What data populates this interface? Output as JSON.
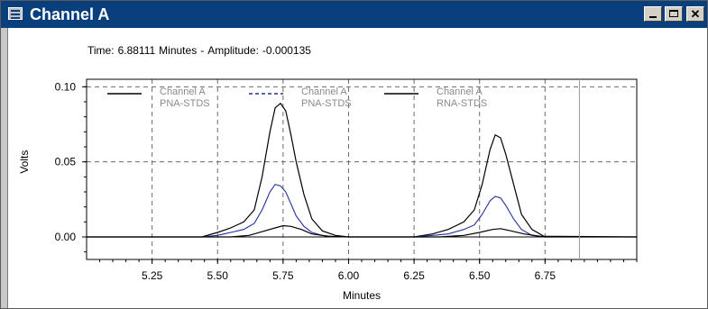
{
  "window": {
    "title": "Channel A",
    "buttons": {
      "minimize": "minimize",
      "maximize": "maximize",
      "close": "✕"
    }
  },
  "readout": {
    "time_label": "Time:",
    "time_value": "6.88111",
    "time_unit": "Minutes",
    "separator": "-",
    "amplitude_label": "Amplitude:",
    "amplitude_value": "-0.000135"
  },
  "chart_data": {
    "type": "line",
    "xlabel": "Minutes",
    "ylabel": "Volts",
    "xlim": [
      5.0,
      7.1
    ],
    "ylim": [
      -0.015,
      0.105
    ],
    "x_ticks": [
      "5.25",
      "5.50",
      "5.75",
      "6.00",
      "6.25",
      "6.50",
      "6.75"
    ],
    "x_tick_values": [
      5.25,
      5.5,
      5.75,
      6.0,
      6.25,
      6.5,
      6.75
    ],
    "y_ticks": [
      "0.00",
      "0.05",
      "0.10"
    ],
    "y_tick_values": [
      0.0,
      0.05,
      0.1
    ],
    "grid": true,
    "cursor_x": 6.88111,
    "legend": [
      {
        "line1": "Channel A",
        "line2": "PNA-STDS",
        "color": "#000000",
        "dash": "solid"
      },
      {
        "line1": "Channel A",
        "line2": "PNA-STDS",
        "color": "#1f2f9a",
        "dash": "dashed"
      },
      {
        "line1": "Channel A",
        "line2": "RNA-STDS",
        "color": "#000000",
        "dash": "solid"
      }
    ],
    "series": [
      {
        "color": "#000000",
        "x": [
          5.0,
          5.44,
          5.5,
          5.55,
          5.6,
          5.64,
          5.67,
          5.7,
          5.72,
          5.74,
          5.76,
          5.78,
          5.8,
          5.83,
          5.86,
          5.9,
          5.95,
          6.0,
          6.25,
          6.32,
          6.38,
          6.44,
          6.48,
          6.51,
          6.54,
          6.56,
          6.58,
          6.6,
          6.63,
          6.66,
          6.7,
          6.75,
          7.1
        ],
        "y": [
          0.0,
          0.0,
          0.003,
          0.006,
          0.01,
          0.018,
          0.04,
          0.07,
          0.086,
          0.089,
          0.084,
          0.068,
          0.05,
          0.028,
          0.012,
          0.004,
          0.001,
          0.0,
          0.0,
          0.002,
          0.005,
          0.01,
          0.018,
          0.035,
          0.058,
          0.068,
          0.066,
          0.055,
          0.035,
          0.015,
          0.005,
          0.0,
          0.0
        ]
      },
      {
        "color": "#1f2f9a",
        "x": [
          5.0,
          5.44,
          5.5,
          5.55,
          5.6,
          5.64,
          5.67,
          5.7,
          5.72,
          5.74,
          5.76,
          5.78,
          5.8,
          5.83,
          5.86,
          5.9,
          5.95,
          6.0,
          6.25,
          6.32,
          6.38,
          6.44,
          6.48,
          6.51,
          6.54,
          6.56,
          6.58,
          6.6,
          6.63,
          6.66,
          6.7,
          6.75,
          7.1
        ],
        "y": [
          0.0,
          0.0,
          0.001,
          0.003,
          0.005,
          0.009,
          0.018,
          0.03,
          0.035,
          0.034,
          0.03,
          0.022,
          0.014,
          0.007,
          0.003,
          0.001,
          0.0,
          0.0,
          0.0,
          0.001,
          0.002,
          0.005,
          0.008,
          0.015,
          0.024,
          0.027,
          0.026,
          0.021,
          0.012,
          0.005,
          0.001,
          0.0,
          0.0
        ]
      },
      {
        "color": "#000000",
        "x": [
          5.0,
          5.55,
          5.62,
          5.68,
          5.72,
          5.75,
          5.78,
          5.82,
          5.86,
          5.92,
          6.0,
          6.35,
          6.44,
          6.5,
          6.55,
          6.58,
          6.62,
          6.67,
          6.73,
          7.1
        ],
        "y": [
          0.0,
          0.0,
          0.001,
          0.004,
          0.006,
          0.0075,
          0.007,
          0.005,
          0.002,
          0.0005,
          0.0,
          0.0,
          0.001,
          0.003,
          0.005,
          0.0055,
          0.004,
          0.002,
          0.0005,
          0.0
        ]
      }
    ]
  }
}
